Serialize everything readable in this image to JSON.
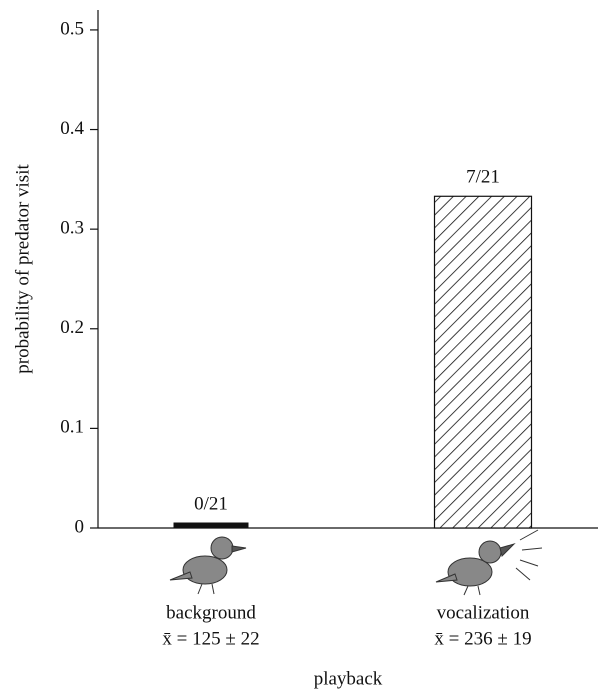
{
  "chart_data": {
    "type": "bar",
    "y_label": "probability of predator visit",
    "x_label": "playback",
    "categories": [
      "background",
      "vocalization"
    ],
    "category_notes": [
      "x̄ = 125 ± 22",
      "x̄ = 236 ± 19"
    ],
    "values": [
      0,
      0.333
    ],
    "value_labels": [
      "0/21",
      "7/21"
    ],
    "fills": [
      "solid",
      "hatch"
    ],
    "color": "#111111",
    "ylim": [
      0,
      0.52
    ],
    "yticks": [
      0,
      0.1,
      0.2,
      0.3,
      0.4,
      0.5
    ],
    "grid": false
  }
}
